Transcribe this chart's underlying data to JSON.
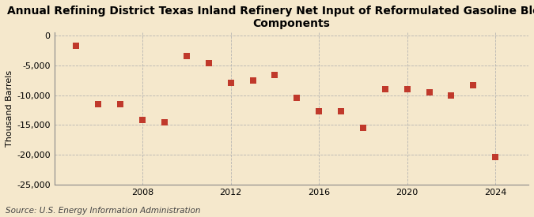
{
  "title": "Annual Refining District Texas Inland Refinery Net Input of Reformulated Gasoline Blending\nComponents",
  "ylabel": "Thousand Barrels",
  "source": "Source: U.S. Energy Information Administration",
  "background_color": "#f5e8cc",
  "plot_background_color": "#f5e8cc",
  "marker_color": "#c0392b",
  "marker": "s",
  "marker_size": 28,
  "years": [
    2005,
    2006,
    2007,
    2008,
    2009,
    2010,
    2011,
    2012,
    2013,
    2014,
    2015,
    2016,
    2017,
    2018,
    2019,
    2020,
    2021,
    2022,
    2023,
    2024
  ],
  "values": [
    -1700,
    -11500,
    -11500,
    -14200,
    -14600,
    -3500,
    -4700,
    -8000,
    -7500,
    -6600,
    -10400,
    -12700,
    -12700,
    -15500,
    -9000,
    -9000,
    -9500,
    -10100,
    -8400,
    -20400
  ],
  "xlim": [
    2004.0,
    2025.5
  ],
  "ylim": [
    -25000,
    500
  ],
  "yticks": [
    0,
    -5000,
    -10000,
    -15000,
    -20000,
    -25000
  ],
  "xticks": [
    2008,
    2012,
    2016,
    2020,
    2024
  ],
  "grid_color": "#b0b0b0",
  "grid_style": "--",
  "title_fontsize": 10,
  "tick_fontsize": 8,
  "ylabel_fontsize": 8,
  "source_fontsize": 7.5
}
